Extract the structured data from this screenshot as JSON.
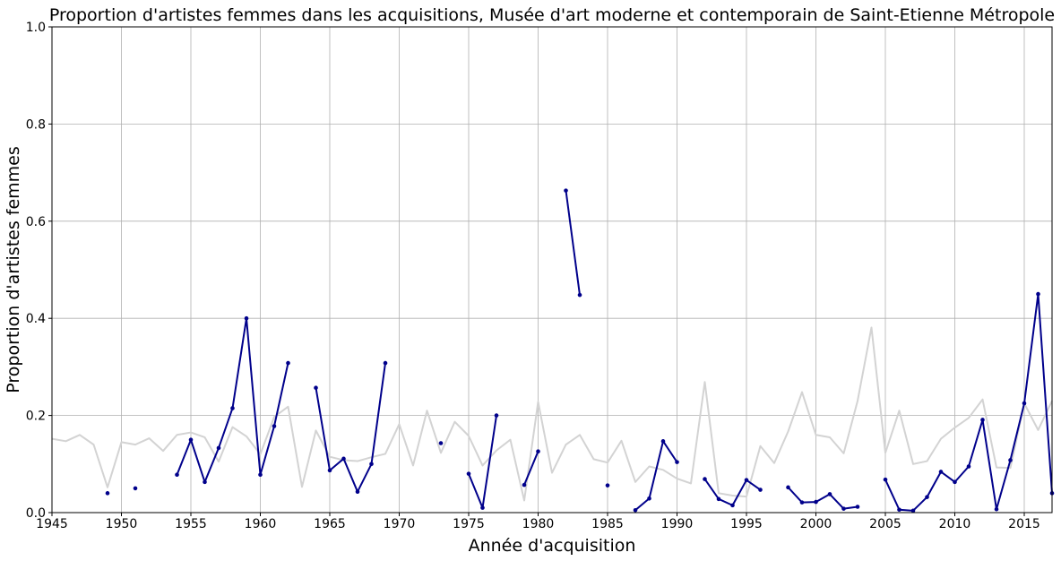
{
  "chart_data": {
    "type": "line",
    "title": "Proportion d'artistes femmes dans les acquisitions, Musée d'art moderne et contemporain de Saint-Etienne Métropole",
    "xlabel": "Année d'acquisition",
    "ylabel": "Proportion d'artistes femmes",
    "xlim": [
      1945,
      2017
    ],
    "ylim": [
      0,
      1.0
    ],
    "grid": true,
    "x_ticks": [
      1945,
      1950,
      1955,
      1960,
      1965,
      1970,
      1975,
      1980,
      1985,
      1990,
      1995,
      2000,
      2005,
      2010,
      2015
    ],
    "y_ticks": [
      0,
      0.2,
      0.4,
      0.6,
      0.8,
      1.0
    ],
    "y_tick_labels": [
      "0.0",
      "0.2",
      "0.4",
      "0.6",
      "0.8",
      "1.0"
    ],
    "series": [
      {
        "name": "reference",
        "color": "#d3d3d3",
        "marker": false,
        "points": [
          [
            1945,
            0.152
          ],
          [
            1946,
            0.147
          ],
          [
            1947,
            0.16
          ],
          [
            1948,
            0.14
          ],
          [
            1949,
            0.052
          ],
          [
            1950,
            0.145
          ],
          [
            1951,
            0.14
          ],
          [
            1952,
            0.153
          ],
          [
            1953,
            0.127
          ],
          [
            1954,
            0.16
          ],
          [
            1955,
            0.165
          ],
          [
            1956,
            0.155
          ],
          [
            1957,
            0.105
          ],
          [
            1958,
            0.176
          ],
          [
            1959,
            0.157
          ],
          [
            1960,
            0.12
          ],
          [
            1961,
            0.197
          ],
          [
            1962,
            0.218
          ],
          [
            1963,
            0.053
          ],
          [
            1964,
            0.169
          ],
          [
            1965,
            0.115
          ],
          [
            1966,
            0.108
          ],
          [
            1967,
            0.106
          ],
          [
            1968,
            0.114
          ],
          [
            1969,
            0.121
          ],
          [
            1970,
            0.182
          ],
          [
            1971,
            0.097
          ],
          [
            1972,
            0.21
          ],
          [
            1973,
            0.123
          ],
          [
            1974,
            0.187
          ],
          [
            1975,
            0.158
          ],
          [
            1976,
            0.097
          ],
          [
            1977,
            0.128
          ],
          [
            1978,
            0.15
          ],
          [
            1979,
            0.025
          ],
          [
            1980,
            0.228
          ],
          [
            1981,
            0.082
          ],
          [
            1982,
            0.14
          ],
          [
            1983,
            0.16
          ],
          [
            1984,
            0.11
          ],
          [
            1985,
            0.103
          ],
          [
            1986,
            0.148
          ],
          [
            1987,
            0.063
          ],
          [
            1988,
            0.095
          ],
          [
            1989,
            0.088
          ],
          [
            1990,
            0.07
          ],
          [
            1991,
            0.06
          ],
          [
            1992,
            0.269
          ],
          [
            1993,
            0.04
          ],
          [
            1994,
            0.035
          ],
          [
            1995,
            0.033
          ],
          [
            1996,
            0.137
          ],
          [
            1997,
            0.102
          ],
          [
            1998,
            0.167
          ],
          [
            1999,
            0.248
          ],
          [
            2000,
            0.16
          ],
          [
            2001,
            0.155
          ],
          [
            2002,
            0.122
          ],
          [
            2003,
            0.23
          ],
          [
            2004,
            0.381
          ],
          [
            2005,
            0.123
          ],
          [
            2006,
            0.21
          ],
          [
            2007,
            0.1
          ],
          [
            2008,
            0.106
          ],
          [
            2009,
            0.152
          ],
          [
            2010,
            0.175
          ],
          [
            2011,
            0.195
          ],
          [
            2012,
            0.233
          ],
          [
            2013,
            0.093
          ],
          [
            2014,
            0.092
          ],
          [
            2015,
            0.225
          ],
          [
            2016,
            0.17
          ],
          [
            2017,
            0.23
          ]
        ]
      },
      {
        "name": "proportion",
        "color": "#00008b",
        "marker": true,
        "segments": [
          [
            [
              1949,
              0.04
            ]
          ],
          [
            [
              1951,
              0.05
            ]
          ],
          [
            [
              1954,
              0.078
            ],
            [
              1955,
              0.15
            ],
            [
              1956,
              0.063
            ],
            [
              1957,
              0.133
            ],
            [
              1958,
              0.215
            ],
            [
              1959,
              0.4
            ],
            [
              1960,
              0.078
            ],
            [
              1961,
              0.178
            ],
            [
              1962,
              0.308
            ]
          ],
          [
            [
              1964,
              0.257
            ],
            [
              1965,
              0.087
            ],
            [
              1966,
              0.111
            ],
            [
              1967,
              0.043
            ],
            [
              1968,
              0.1
            ],
            [
              1969,
              0.308
            ]
          ],
          [
            [
              1973,
              0.143
            ]
          ],
          [
            [
              1975,
              0.08
            ],
            [
              1976,
              0.01
            ],
            [
              1977,
              0.2
            ]
          ],
          [
            [
              1979,
              0.057
            ],
            [
              1980,
              0.126
            ]
          ],
          [
            [
              1982,
              0.663
            ],
            [
              1983,
              0.448
            ]
          ],
          [
            [
              1985,
              0.056
            ]
          ],
          [
            [
              1987,
              0.005
            ],
            [
              1988,
              0.029
            ],
            [
              1989,
              0.147
            ],
            [
              1990,
              0.104
            ]
          ],
          [
            [
              1992,
              0.069
            ],
            [
              1993,
              0.028
            ],
            [
              1994,
              0.015
            ],
            [
              1995,
              0.067
            ],
            [
              1996,
              0.047
            ]
          ],
          [
            [
              1998,
              0.052
            ],
            [
              1999,
              0.021
            ],
            [
              2000,
              0.022
            ],
            [
              2001,
              0.038
            ],
            [
              2002,
              0.008
            ],
            [
              2003,
              0.012
            ]
          ],
          [
            [
              2005,
              0.068
            ],
            [
              2006,
              0.006
            ],
            [
              2007,
              0.004
            ],
            [
              2008,
              0.032
            ],
            [
              2009,
              0.084
            ],
            [
              2010,
              0.063
            ],
            [
              2011,
              0.095
            ],
            [
              2012,
              0.191
            ],
            [
              2013,
              0.007
            ],
            [
              2014,
              0.108
            ],
            [
              2015,
              0.225
            ],
            [
              2016,
              0.45
            ],
            [
              2017,
              0.04
            ]
          ]
        ]
      }
    ]
  }
}
